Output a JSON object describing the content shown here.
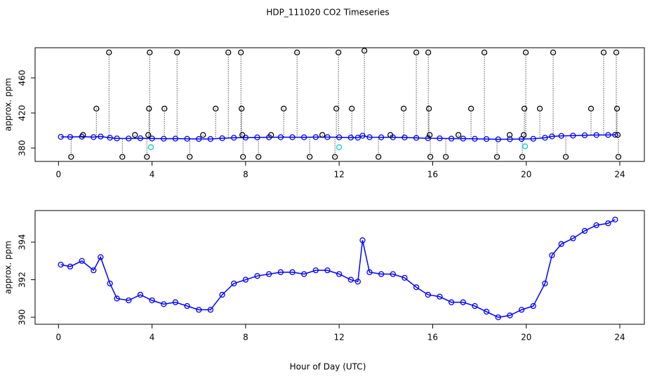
{
  "chart_data": [
    {
      "type": "scatter",
      "title": "HDP_111020  CO2 Timeseries",
      "y_label": "approx. ppm",
      "xlim": [
        -1,
        25.05
      ],
      "ylim": [
        364.8,
        494.4
      ],
      "xticks": [
        0,
        4,
        8,
        12,
        16,
        20,
        24
      ],
      "yticks": [
        380,
        420,
        460
      ],
      "series": [
        {
          "color": "#0000ff",
          "marker": "circle",
          "line": true,
          "x": [
            0.1,
            0.5,
            1.0,
            1.5,
            1.8,
            2.2,
            2.5,
            3.0,
            3.5,
            4.0,
            4.5,
            5.0,
            5.5,
            6.0,
            6.5,
            7.0,
            7.5,
            8.0,
            8.5,
            9.0,
            9.5,
            10,
            10.5,
            11,
            11.5,
            12,
            12.5,
            12.8,
            13.0,
            13.3,
            13.8,
            14.3,
            14.8,
            15.3,
            15.8,
            16.3,
            16.8,
            17.3,
            17.8,
            18.3,
            18.8,
            19.3,
            19.8,
            20.3,
            20.8,
            21.1,
            21.5,
            22.0,
            22.5,
            23.0,
            23.5,
            23.8
          ],
          "values": [
            392.8,
            392.7,
            393.0,
            392.5,
            393.2,
            391.8,
            391.0,
            390.9,
            391.2,
            390.9,
            390.7,
            390.8,
            390.6,
            390.4,
            390.4,
            391.2,
            391.8,
            392.0,
            392.2,
            392.3,
            392.4,
            392.4,
            392.3,
            392.5,
            392.5,
            392.3,
            392.0,
            391.9,
            394.1,
            392.4,
            392.3,
            392.3,
            392.1,
            391.6,
            391.2,
            391.1,
            390.8,
            390.8,
            390.6,
            390.3,
            390.0,
            390.1,
            390.4,
            390.6,
            391.8,
            393.3,
            393.9,
            394.2,
            394.6,
            394.9,
            395.0,
            395.2
          ]
        },
        {
          "color": "#000000",
          "marker": "circle",
          "drop_lines": true,
          "x": [
            0.54,
            1.05,
            1.62,
            2.16,
            2.73,
            3.27,
            3.78,
            3.84,
            3.87,
            3.9,
            4.53,
            5.07,
            5.61,
            6.18,
            6.72,
            7.26,
            7.8,
            7.83,
            7.86,
            7.89,
            8.55,
            9.09,
            9.63,
            10.2,
            10.74,
            11.28,
            11.82,
            11.88,
            11.97,
            12.54,
            13.08,
            13.68,
            14.19,
            14.76,
            15.3,
            15.81,
            15.84,
            15.87,
            15.9,
            16.56,
            17.1,
            17.64,
            18.21,
            18.75,
            19.29,
            19.83,
            19.89,
            19.92,
            19.98,
            20.58,
            21.15,
            21.69,
            22.77,
            23.31,
            23.85,
            23.88,
            23.91,
            23.94
          ],
          "values": [
            370,
            395,
            425,
            489,
            370,
            395,
            370,
            395,
            425,
            489,
            425,
            489,
            370,
            395,
            425,
            489,
            489,
            425,
            395,
            370,
            370,
            395,
            425,
            489,
            370,
            395,
            370,
            425,
            489,
            425,
            491,
            370,
            395,
            425,
            489,
            489,
            425,
            395,
            370,
            370,
            395,
            425,
            489,
            370,
            395,
            370,
            395,
            425,
            489,
            425,
            489,
            370,
            425,
            489,
            489,
            425,
            395,
            370
          ]
        },
        {
          "color": "#00cccc",
          "marker": "circle",
          "x": [
            3.95,
            12.0,
            19.95
          ],
          "values": [
            381,
            381,
            382
          ]
        }
      ]
    },
    {
      "type": "scatter",
      "x_label": "Hour of Day (UTC)",
      "y_label": "approx. ppm",
      "xlim": [
        -1,
        25.05
      ],
      "ylim": [
        389.63,
        395.68
      ],
      "xticks": [
        0,
        4,
        8,
        12,
        16,
        20,
        24
      ],
      "yticks": [
        390,
        392,
        394
      ],
      "series": [
        {
          "color": "#0000ff",
          "marker": "circle",
          "line": true,
          "x": [
            0.1,
            0.5,
            1.0,
            1.5,
            1.8,
            2.2,
            2.5,
            3.0,
            3.5,
            4.0,
            4.5,
            5.0,
            5.5,
            6.0,
            6.5,
            7.0,
            7.5,
            8.0,
            8.5,
            9.0,
            9.5,
            10,
            10.5,
            11,
            11.5,
            12,
            12.5,
            12.8,
            13.0,
            13.3,
            13.8,
            14.3,
            14.8,
            15.3,
            15.8,
            16.3,
            16.8,
            17.3,
            17.8,
            18.3,
            18.8,
            19.3,
            19.8,
            20.3,
            20.8,
            21.1,
            21.5,
            22.0,
            22.5,
            23.0,
            23.5,
            23.8
          ],
          "values": [
            392.8,
            392.7,
            393.0,
            392.5,
            393.2,
            391.8,
            391.0,
            390.9,
            391.2,
            390.9,
            390.7,
            390.8,
            390.6,
            390.4,
            390.4,
            391.2,
            391.8,
            392.0,
            392.2,
            392.3,
            392.4,
            392.4,
            392.3,
            392.5,
            392.5,
            392.3,
            392.0,
            391.9,
            394.1,
            392.4,
            392.3,
            392.3,
            392.1,
            391.6,
            391.2,
            391.1,
            390.8,
            390.8,
            390.6,
            390.3,
            390.0,
            390.1,
            390.4,
            390.6,
            391.8,
            393.3,
            393.9,
            394.2,
            394.6,
            394.9,
            395.0,
            395.2
          ]
        }
      ]
    }
  ]
}
